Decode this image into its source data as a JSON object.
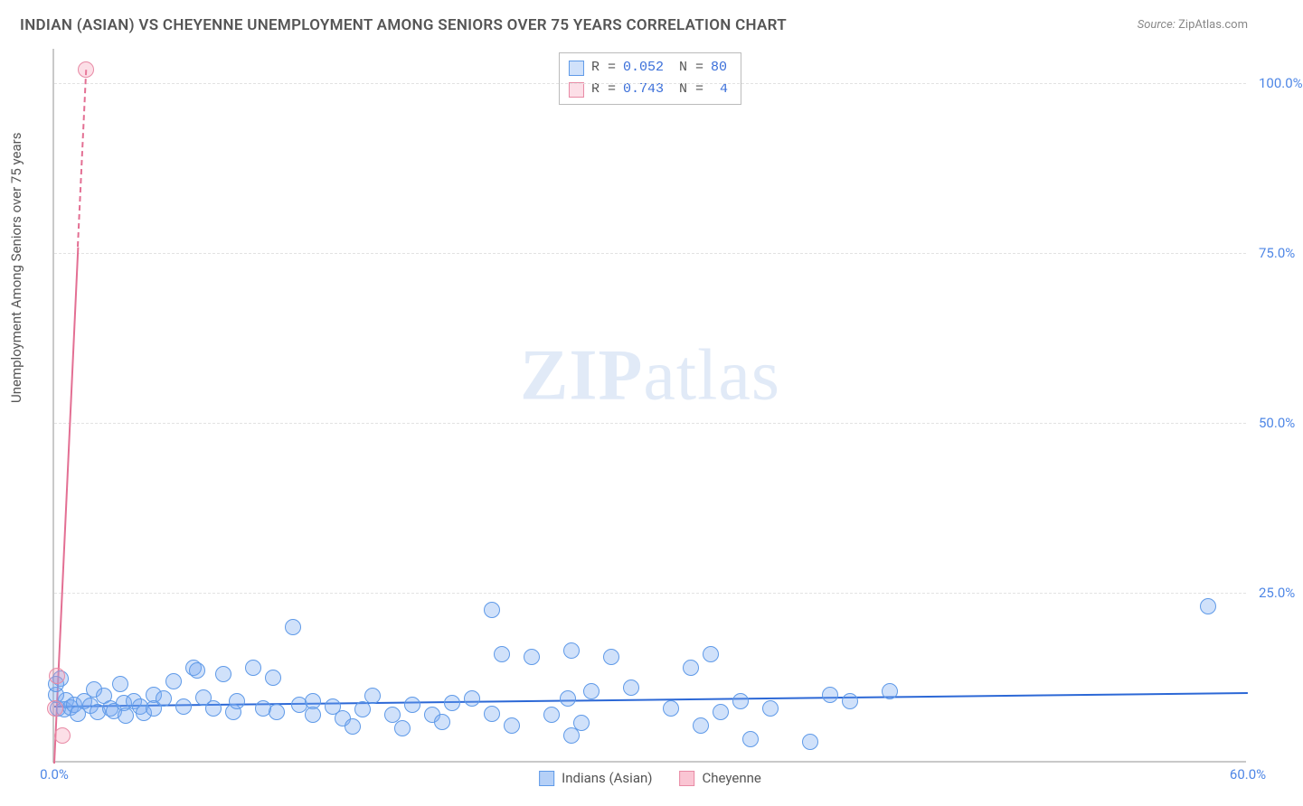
{
  "title": "INDIAN (ASIAN) VS CHEYENNE UNEMPLOYMENT AMONG SENIORS OVER 75 YEARS CORRELATION CHART",
  "source_label": "Source:",
  "source_value": "ZipAtlas.com",
  "ylabel": "Unemployment Among Seniors over 75 years",
  "watermark_bold": "ZIP",
  "watermark_light": "atlas",
  "chart": {
    "type": "scatter",
    "xlim": [
      0,
      60
    ],
    "ylim": [
      0,
      105
    ],
    "xticks": [
      {
        "v": 0,
        "label": "0.0%"
      },
      {
        "v": 60,
        "label": "60.0%"
      }
    ],
    "yticks": [
      {
        "v": 25,
        "label": "25.0%"
      },
      {
        "v": 50,
        "label": "50.0%"
      },
      {
        "v": 75,
        "label": "75.0%"
      },
      {
        "v": 100,
        "label": "100.0%"
      }
    ],
    "grid_color": "#e2e2e2",
    "background_color": "#ffffff",
    "series": [
      {
        "name": "Indians (Asian)",
        "fill": "rgba(120,170,240,0.35)",
        "stroke": "#5f9ae8",
        "marker_r": 9,
        "trend": {
          "y0": 8.4,
          "y60": 10.4,
          "color": "#2c68d6",
          "width": 2
        },
        "stats": {
          "R": "0.052",
          "N": "80"
        },
        "points": [
          [
            0.2,
            8.0
          ],
          [
            0.5,
            7.8
          ],
          [
            0.6,
            9.2
          ],
          [
            0.8,
            8.1
          ],
          [
            0.3,
            12.3
          ],
          [
            0.1,
            10.0
          ],
          [
            1.0,
            8.5
          ],
          [
            1.2,
            7.2
          ],
          [
            1.5,
            9.0
          ],
          [
            1.8,
            8.4
          ],
          [
            2.0,
            10.8
          ],
          [
            2.2,
            7.5
          ],
          [
            2.5,
            9.8
          ],
          [
            2.8,
            8.0
          ],
          [
            3.0,
            7.6
          ],
          [
            3.3,
            11.5
          ],
          [
            3.5,
            8.8
          ],
          [
            3.6,
            6.9
          ],
          [
            4.0,
            9.0
          ],
          [
            4.3,
            8.2
          ],
          [
            4.5,
            7.3
          ],
          [
            5.0,
            10.0
          ],
          [
            5.0,
            8.0
          ],
          [
            5.5,
            9.4
          ],
          [
            6.0,
            12.0
          ],
          [
            6.5,
            8.2
          ],
          [
            7.0,
            14.0
          ],
          [
            7.2,
            13.5
          ],
          [
            7.5,
            9.6
          ],
          [
            8.0,
            8.0
          ],
          [
            8.5,
            13.0
          ],
          [
            9.0,
            7.5
          ],
          [
            9.2,
            9.0
          ],
          [
            10.0,
            14.0
          ],
          [
            10.5,
            8.0
          ],
          [
            11.0,
            12.5
          ],
          [
            11.2,
            7.5
          ],
          [
            12.0,
            20.0
          ],
          [
            12.3,
            8.5
          ],
          [
            13.0,
            9.0
          ],
          [
            13.0,
            7.0
          ],
          [
            14.0,
            8.2
          ],
          [
            14.5,
            6.5
          ],
          [
            15.0,
            5.3
          ],
          [
            15.5,
            7.8
          ],
          [
            16.0,
            9.8
          ],
          [
            17.0,
            7.1
          ],
          [
            17.5,
            5.0
          ],
          [
            18.0,
            8.5
          ],
          [
            19.0,
            7.0
          ],
          [
            19.5,
            6.0
          ],
          [
            20.0,
            8.8
          ],
          [
            21.0,
            9.5
          ],
          [
            22.0,
            22.5
          ],
          [
            22.0,
            7.2
          ],
          [
            22.5,
            16.0
          ],
          [
            23.0,
            5.5
          ],
          [
            24.0,
            15.5
          ],
          [
            25.0,
            7.0
          ],
          [
            25.8,
            9.5
          ],
          [
            26.0,
            16.5
          ],
          [
            26.0,
            4.0
          ],
          [
            26.5,
            5.8
          ],
          [
            27.0,
            10.5
          ],
          [
            28.0,
            15.5
          ],
          [
            29.0,
            11.0
          ],
          [
            31.0,
            8.0
          ],
          [
            32.0,
            14.0
          ],
          [
            32.5,
            5.5
          ],
          [
            33.0,
            16.0
          ],
          [
            33.5,
            7.5
          ],
          [
            34.5,
            9.0
          ],
          [
            35.0,
            3.5
          ],
          [
            36.0,
            8.0
          ],
          [
            38.0,
            3.0
          ],
          [
            39.0,
            10.0
          ],
          [
            40.0,
            9.0
          ],
          [
            42.0,
            10.5
          ],
          [
            58.0,
            23.0
          ],
          [
            0.1,
            11.5
          ]
        ]
      },
      {
        "name": "Cheyenne",
        "fill": "rgba(245,150,175,0.30)",
        "stroke": "#e88aa5",
        "marker_r": 9,
        "trend": {
          "y0": 0,
          "y_at_x": 76,
          "x_at": 1.2,
          "color": "#e36f93",
          "width": 2,
          "dashed_above": 76,
          "top": 102
        },
        "stats": {
          "R": "0.743",
          "N": "4"
        },
        "points": [
          [
            0.05,
            8.0
          ],
          [
            0.15,
            12.8
          ],
          [
            0.4,
            4.0
          ],
          [
            1.6,
            102.0
          ]
        ]
      }
    ],
    "legend_bottom": [
      {
        "label": "Indians (Asian)",
        "fill": "rgba(120,170,240,0.55)",
        "stroke": "#5f9ae8"
      },
      {
        "label": "Cheyenne",
        "fill": "rgba(245,150,175,0.55)",
        "stroke": "#e88aa5"
      }
    ]
  }
}
